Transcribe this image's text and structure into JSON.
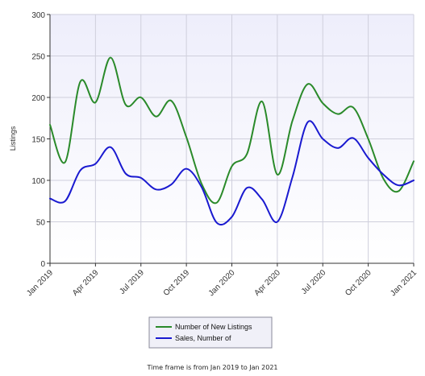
{
  "chart_data": {
    "type": "line",
    "ylabel": "Listings",
    "xlabel": "",
    "ylim": [
      0,
      300
    ],
    "yticks": [
      0,
      50,
      100,
      150,
      200,
      250,
      300
    ],
    "xlim": [
      "Jan 2019",
      "Jan 2021"
    ],
    "x_tick_labels": [
      "Jan 2019",
      "Apr 2019",
      "Jul 2019",
      "Oct 2019",
      "Jan 2020",
      "Apr 2020",
      "Jul 2020",
      "Oct 2020",
      "Jan 2021"
    ],
    "grid": true,
    "legend_position": "bottom-center",
    "x": [
      "Jan 2019",
      "Feb 2019",
      "Mar 2019",
      "Apr 2019",
      "May 2019",
      "Jun 2019",
      "Jul 2019",
      "Aug 2019",
      "Sep 2019",
      "Oct 2019",
      "Nov 2019",
      "Dec 2019",
      "Jan 2020",
      "Feb 2020",
      "Mar 2020",
      "Apr 2020",
      "May 2020",
      "Jun 2020",
      "Jul 2020",
      "Aug 2020",
      "Sep 2020",
      "Oct 2020",
      "Nov 2020",
      "Dec 2020",
      "Jan 2021"
    ],
    "series": [
      {
        "name": "Number of New Listings",
        "color": "#2a8a2a",
        "values": [
          167,
          122,
          219,
          194,
          248,
          191,
          200,
          177,
          196,
          152,
          96,
          73,
          117,
          132,
          195,
          107,
          172,
          216,
          193,
          180,
          188,
          150,
          102,
          87,
          123
        ]
      },
      {
        "name": "Sales, Number of",
        "color": "#1a1ad0",
        "values": [
          78,
          75,
          112,
          120,
          140,
          108,
          103,
          89,
          95,
          114,
          92,
          49,
          56,
          91,
          77,
          50,
          104,
          170,
          150,
          139,
          151,
          127,
          107,
          94,
          100
        ]
      }
    ]
  },
  "footer": {
    "timeframe": "Time frame is from Jan 2019 to Jan 2021"
  },
  "colors": {
    "plot_bg_top": "#f6f6fd",
    "plot_bg_bottom": "#ffffff",
    "gridline": "#c8c8d8"
  }
}
